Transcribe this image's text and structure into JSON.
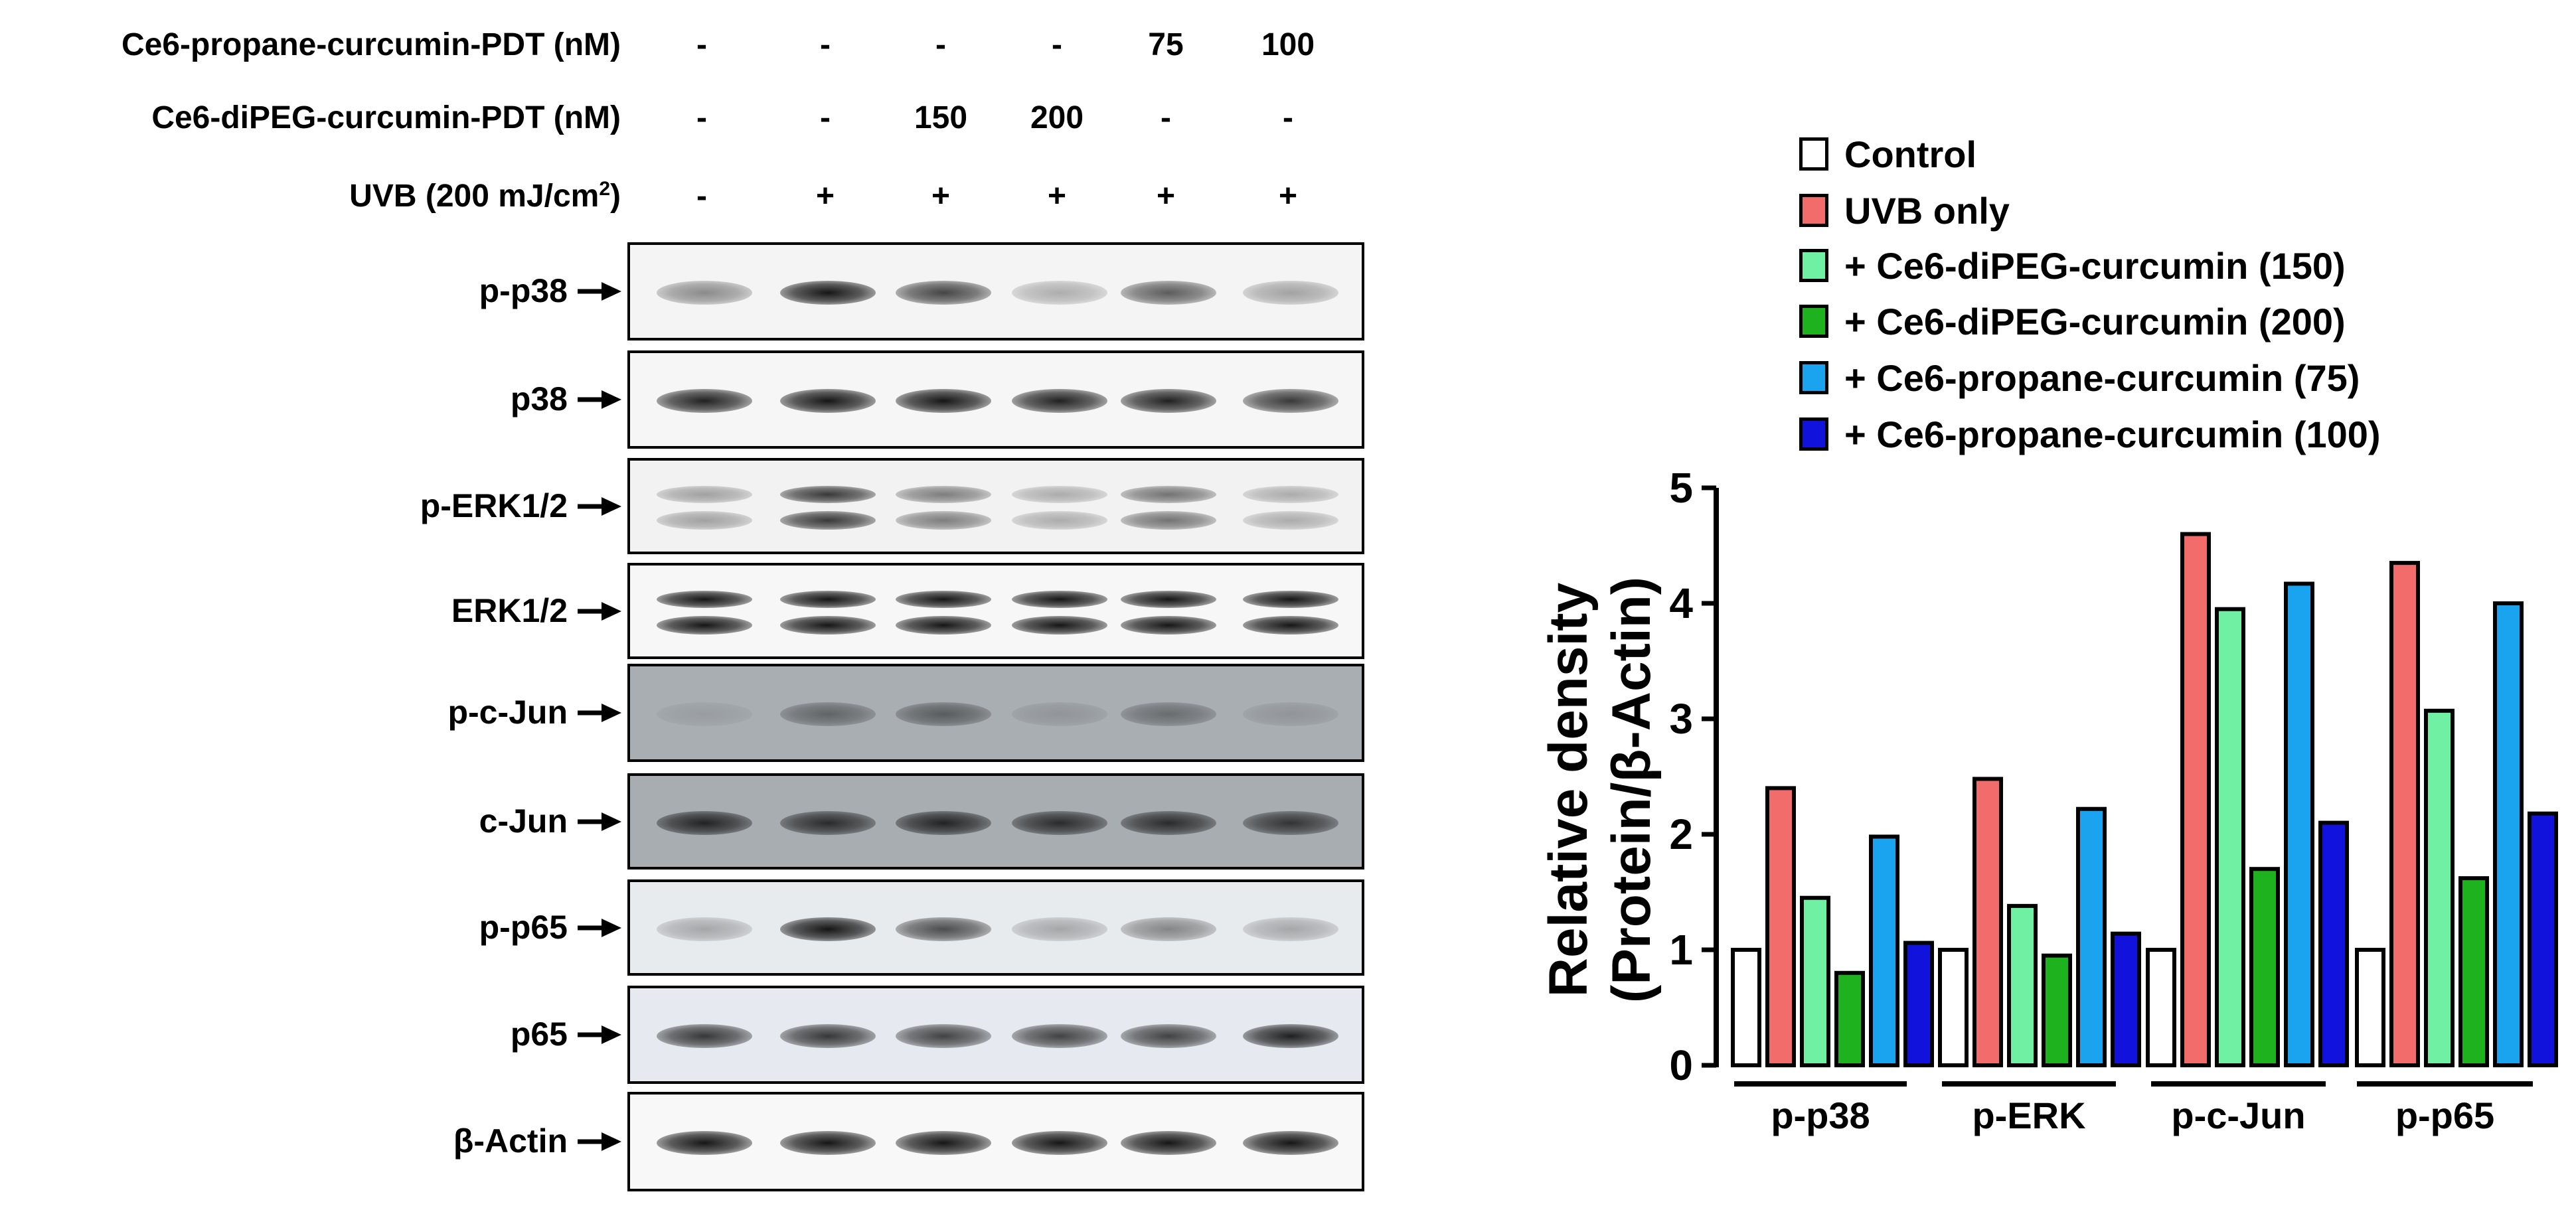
{
  "conditions": [
    {
      "label": "Ce6-propane-curcumin-PDT (nM)",
      "values": [
        "-",
        "-",
        "-",
        "-",
        "75",
        "100"
      ]
    },
    {
      "label": "Ce6-diPEG-curcumin-PDT (nM)",
      "values": [
        "-",
        "-",
        "150",
        "200",
        "-",
        "-"
      ]
    },
    {
      "label_main": "UVB (200 mJ/cm",
      "label_sup": "2",
      "label_end": ")",
      "values": [
        "-",
        "+",
        "+",
        "+",
        "+",
        "+"
      ]
    }
  ],
  "blots": [
    {
      "label": "p-p38",
      "intensity": [
        0.45,
        0.95,
        0.75,
        0.3,
        0.65,
        0.35
      ],
      "double": false,
      "bg": "#f4f4f4"
    },
    {
      "label": "p38",
      "intensity": [
        0.9,
        0.95,
        0.95,
        0.9,
        0.9,
        0.8
      ],
      "double": false,
      "bg": "#f6f6f6"
    },
    {
      "label": "p-ERK1/2",
      "intensity": [
        0.35,
        0.8,
        0.5,
        0.3,
        0.55,
        0.3
      ],
      "double": true,
      "bg": "#f2f2f2"
    },
    {
      "label": "ERK1/2",
      "intensity": [
        0.95,
        0.95,
        0.95,
        0.95,
        0.95,
        0.95
      ],
      "double": true,
      "bg": "#f7f7f7"
    },
    {
      "label": "p-c-Jun",
      "intensity": [
        0.1,
        0.45,
        0.5,
        0.15,
        0.4,
        0.15
      ],
      "double": false,
      "bg": "#a9aeb3"
    },
    {
      "label": "c-Jun",
      "intensity": [
        0.85,
        0.8,
        0.85,
        0.8,
        0.8,
        0.75
      ],
      "double": false,
      "bg": "#a8adb2"
    },
    {
      "label": "p-p65",
      "intensity": [
        0.3,
        0.95,
        0.7,
        0.3,
        0.45,
        0.3
      ],
      "double": false,
      "bg": "#e8ebee"
    },
    {
      "label": "p65",
      "intensity": [
        0.8,
        0.8,
        0.75,
        0.75,
        0.75,
        0.9
      ],
      "double": false,
      "bg": "#e6eaf0"
    },
    {
      "label": "β-Actin",
      "intensity": [
        0.95,
        0.95,
        0.95,
        0.95,
        0.95,
        0.95
      ],
      "double": false,
      "bg": "#f8f8f8"
    }
  ],
  "legend": [
    {
      "label": "Control",
      "color": "#ffffff"
    },
    {
      "label": "UVB only",
      "color": "#f26c6c"
    },
    {
      "label": "+ Ce6-diPEG-curcumin (150)",
      "color": "#6ff0a2"
    },
    {
      "label": "+ Ce6-diPEG-curcumin (200)",
      "color": "#1fb21f"
    },
    {
      "label": "+ Ce6-propane-curcumin (75)",
      "color": "#1aa4f0"
    },
    {
      "label": "+ Ce6-propane-curcumin (100)",
      "color": "#1212dd"
    }
  ],
  "chart_data": {
    "type": "bar",
    "categories": [
      "p-p38",
      "p-ERK",
      "p-c-Jun",
      "p-p65"
    ],
    "series": [
      {
        "name": "Control",
        "values": [
          1.0,
          1.0,
          1.0,
          1.0
        ]
      },
      {
        "name": "UVB only",
        "values": [
          2.4,
          2.48,
          4.6,
          4.35
        ]
      },
      {
        "name": "+ Ce6-diPEG-curcumin (150)",
        "values": [
          1.45,
          1.38,
          3.95,
          3.07
        ]
      },
      {
        "name": "+ Ce6-diPEG-curcumin (200)",
        "values": [
          0.8,
          0.95,
          1.7,
          1.62
        ]
      },
      {
        "name": "+ Ce6-propane-curcumin (75)",
        "values": [
          1.98,
          2.22,
          4.17,
          4.0
        ]
      },
      {
        "name": "+ Ce6-propane-curcumin (100)",
        "values": [
          1.06,
          1.14,
          2.1,
          2.18
        ]
      }
    ],
    "title": "",
    "ylabel_line1": "Relative density",
    "ylabel_line2": "(Protein/β-Actin)",
    "xlabel": "",
    "ylim": [
      0,
      5
    ],
    "yticks": [
      "0",
      "1",
      "2",
      "3",
      "4",
      "5"
    ],
    "grid": false,
    "legend_position": "top"
  }
}
